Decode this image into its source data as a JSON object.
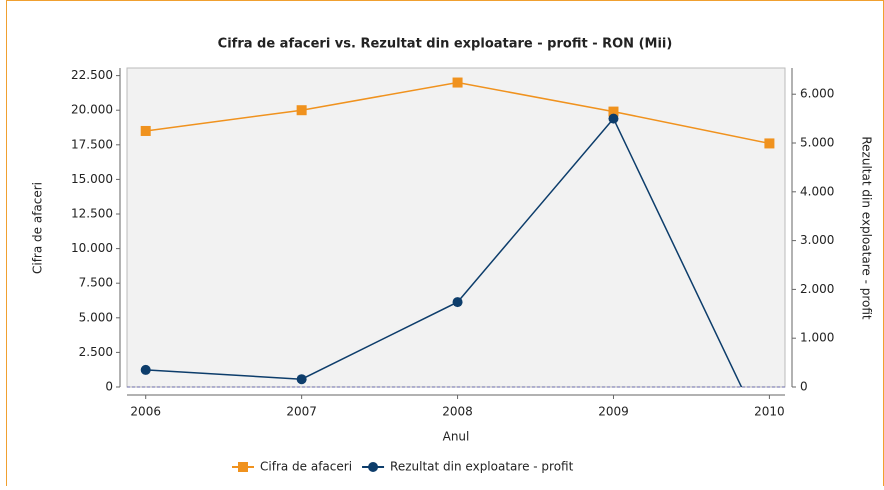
{
  "chart_data": {
    "type": "line",
    "title": "Cifra de afaceri vs. Rezultat din exploatare - profit - RON (Mii)",
    "x_label": "Anul",
    "y_label": "Cifra de afaceri",
    "y2_label": "Rezultat din exploatare - profit",
    "x": [
      2006,
      2007,
      2008,
      2009,
      2010
    ],
    "xlim": [
      2005.88,
      2010.1
    ],
    "xticks": [
      2006,
      2007,
      2008,
      2009,
      2010
    ],
    "ylim": [
      0,
      23050
    ],
    "yticks": [
      0,
      {
        "value": 2500,
        "label": "2.500"
      },
      {
        "value": 5000,
        "label": "5.000"
      },
      {
        "value": 7500,
        "label": "7.500"
      },
      {
        "value": 10000,
        "label": "10.000"
      },
      {
        "value": 12500,
        "label": "12.500"
      },
      {
        "value": 15000,
        "label": "15.000"
      },
      {
        "value": 17500,
        "label": "17.500"
      },
      {
        "value": 20000,
        "label": "20.000"
      },
      {
        "value": 22500,
        "label": "22.500"
      }
    ],
    "y2lim": [
      0,
      6537
    ],
    "y2ticks": [
      0,
      {
        "value": 1000,
        "label": "1.000"
      },
      {
        "value": 2000,
        "label": "2.000"
      },
      {
        "value": 3000,
        "label": "3.000"
      },
      {
        "value": 4000,
        "label": "4.000"
      },
      {
        "value": 5000,
        "label": "5.000"
      },
      {
        "value": 6000,
        "label": "6.000"
      }
    ],
    "legend": "bottom",
    "series": [
      {
        "name": "Cifra de afaceri",
        "color": "#f0921e",
        "marker": "square",
        "values": [
          18500,
          20000,
          22000,
          19900,
          17600
        ]
      },
      {
        "name": "Rezultat din exploatare - profit",
        "color": "#0d3d6b",
        "marker": "circle",
        "axis": "y2",
        "values": [
          350,
          160,
          1740,
          5500,
          -1200
        ]
      }
    ]
  }
}
